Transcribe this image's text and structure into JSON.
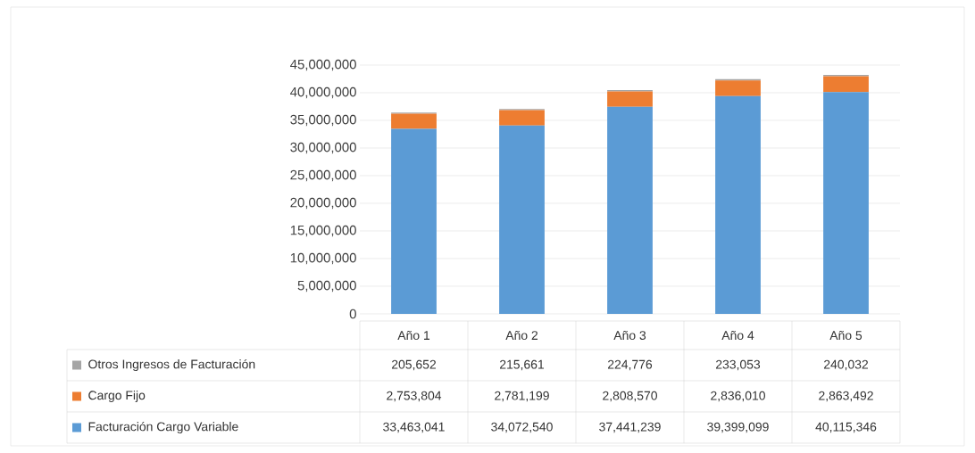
{
  "chart_data": {
    "type": "bar",
    "stacked": true,
    "categories": [
      "Año 1",
      "Año 2",
      "Año 3",
      "Año 4",
      "Año 5"
    ],
    "series": [
      {
        "name": "Facturación Cargo Variable",
        "color": "#5b9bd5",
        "values": [
          33463041,
          34072540,
          37441239,
          39399099,
          40115346
        ],
        "value_labels": [
          "33,463,041",
          "34,072,540",
          "37,441,239",
          "39,399,099",
          "40,115,346"
        ]
      },
      {
        "name": "Cargo Fijo",
        "color": "#ed7d31",
        "values": [
          2753804,
          2781199,
          2808570,
          2836010,
          2863492
        ],
        "value_labels": [
          "2,753,804",
          "2,781,199",
          "2,808,570",
          "2,836,010",
          "2,863,492"
        ]
      },
      {
        "name": "Otros Ingresos de Facturación",
        "color": "#a5a5a5",
        "values": [
          205652,
          215661,
          224776,
          233053,
          240032
        ],
        "value_labels": [
          "205,652",
          "215,661",
          "224,776",
          "233,053",
          "240,032"
        ]
      }
    ],
    "ylim": [
      0,
      45000000
    ],
    "yticks": [
      0,
      {
        "value": 5000000,
        "label": "5,000,000"
      },
      {
        "value": 10000000,
        "label": "10,000,000"
      },
      {
        "value": 15000000,
        "label": "15,000,000"
      },
      {
        "value": 20000000,
        "label": "20,000,000"
      },
      {
        "value": 25000000,
        "label": "25,000,000"
      },
      {
        "value": 30000000,
        "label": "30,000,000"
      },
      {
        "value": 35000000,
        "label": "35,000,000"
      },
      {
        "value": 40000000,
        "label": "40,000,000"
      },
      {
        "value": 45000000,
        "label": "45,000,000"
      }
    ],
    "grid": "y",
    "legend": "bottom"
  }
}
